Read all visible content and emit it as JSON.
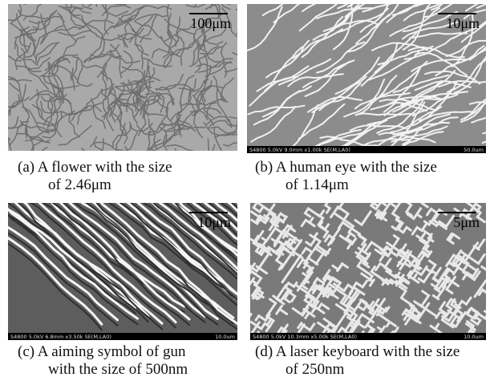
{
  "panels": [
    {
      "scale_label": "100μm",
      "caption": [
        "(a) A flower with the size",
        "of 2.46μm"
      ]
    },
    {
      "scale_label": "10μm",
      "sem_info": "S4800 5.0kV 9.0mm x1.00k SE(M,LA0)",
      "sem_scale": "50.0um",
      "caption": [
        "(b) A human eye with the size",
        "of 1.14μm"
      ]
    },
    {
      "scale_label": "10μm",
      "sem_info": "S4800 5.0kV 6.8mm x3.50k SE(M,LA0)",
      "sem_scale": "10.0um",
      "caption": [
        "(c) A aiming symbol of gun",
        "with the size of 500nm"
      ]
    },
    {
      "scale_label": "5μm",
      "sem_info": "S4800 5.0kV 10.3mm x5.00k SE(M,LA0)",
      "sem_scale": "10.0um",
      "caption": [
        "(d) A laser keyboard with the size",
        "of 250nm"
      ]
    }
  ]
}
